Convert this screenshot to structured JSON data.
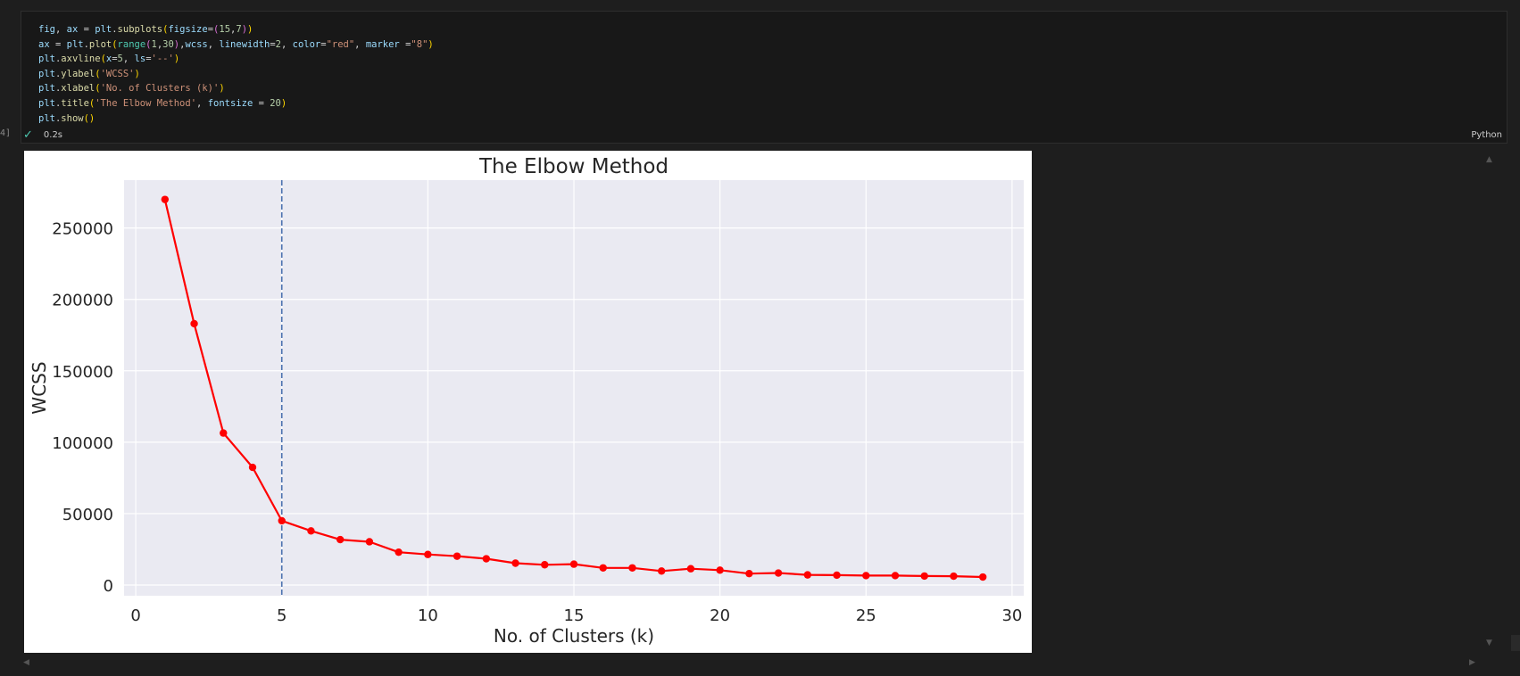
{
  "cell": {
    "execution_count": "4]",
    "code_lines": [
      [
        [
          "fig",
          "var"
        ],
        [
          ", ",
          "plain"
        ],
        [
          "ax",
          "var"
        ],
        [
          " = ",
          "plain"
        ],
        [
          "plt",
          "var"
        ],
        [
          ".",
          "plain"
        ],
        [
          "subplots",
          "fn"
        ],
        [
          "(",
          "paren"
        ],
        [
          "figsize",
          "var"
        ],
        [
          "=",
          "plain"
        ],
        [
          "(",
          "paren2"
        ],
        [
          "15",
          "num"
        ],
        [
          ",",
          "plain"
        ],
        [
          "7",
          "num"
        ],
        [
          ")",
          "paren2"
        ],
        [
          ")",
          "paren"
        ]
      ],
      [
        [
          "ax",
          "var"
        ],
        [
          " = ",
          "plain"
        ],
        [
          "plt",
          "var"
        ],
        [
          ".",
          "plain"
        ],
        [
          "plot",
          "fn"
        ],
        [
          "(",
          "paren"
        ],
        [
          "range",
          "cls"
        ],
        [
          "(",
          "paren2"
        ],
        [
          "1",
          "num"
        ],
        [
          ",",
          "plain"
        ],
        [
          "30",
          "num"
        ],
        [
          ")",
          "paren2"
        ],
        [
          ",",
          "plain"
        ],
        [
          "wcss",
          "var"
        ],
        [
          ", ",
          "plain"
        ],
        [
          "linewidth",
          "var"
        ],
        [
          "=",
          "plain"
        ],
        [
          "2",
          "num"
        ],
        [
          ", ",
          "plain"
        ],
        [
          "color",
          "var"
        ],
        [
          "=",
          "plain"
        ],
        [
          "\"red\"",
          "str"
        ],
        [
          ", ",
          "plain"
        ],
        [
          "marker",
          "var"
        ],
        [
          " =",
          "plain"
        ],
        [
          "\"8\"",
          "str"
        ],
        [
          ")",
          "paren"
        ]
      ],
      [
        [
          "plt",
          "var"
        ],
        [
          ".",
          "plain"
        ],
        [
          "axvline",
          "fn"
        ],
        [
          "(",
          "paren"
        ],
        [
          "x",
          "var"
        ],
        [
          "=",
          "plain"
        ],
        [
          "5",
          "num"
        ],
        [
          ", ",
          "plain"
        ],
        [
          "ls",
          "var"
        ],
        [
          "=",
          "plain"
        ],
        [
          "'--'",
          "str"
        ],
        [
          ")",
          "paren"
        ]
      ],
      [
        [
          "plt",
          "var"
        ],
        [
          ".",
          "plain"
        ],
        [
          "ylabel",
          "fn"
        ],
        [
          "(",
          "paren"
        ],
        [
          "'WCSS'",
          "str"
        ],
        [
          ")",
          "paren"
        ]
      ],
      [
        [
          "plt",
          "var"
        ],
        [
          ".",
          "plain"
        ],
        [
          "xlabel",
          "fn"
        ],
        [
          "(",
          "paren"
        ],
        [
          "'No. of Clusters (k)'",
          "str"
        ],
        [
          ")",
          "paren"
        ]
      ],
      [
        [
          "plt",
          "var"
        ],
        [
          ".",
          "plain"
        ],
        [
          "title",
          "fn"
        ],
        [
          "(",
          "paren"
        ],
        [
          "'The Elbow Method'",
          "str"
        ],
        [
          ", ",
          "plain"
        ],
        [
          "fontsize",
          "var"
        ],
        [
          " = ",
          "plain"
        ],
        [
          "20",
          "num"
        ],
        [
          ")",
          "paren"
        ]
      ],
      [
        [
          "plt",
          "var"
        ],
        [
          ".",
          "plain"
        ],
        [
          "show",
          "fn"
        ],
        [
          "()",
          "paren"
        ]
      ]
    ],
    "status_icon": "check-icon",
    "duration": "0.2s",
    "language": "Python"
  },
  "colors": {
    "line": "#ff0000",
    "vline": "#4c72b0",
    "plot_bg": "#eaeaf2",
    "grid": "#ffffff"
  },
  "chart_data": {
    "type": "line",
    "title": "The Elbow Method",
    "xlabel": "No. of Clusters (k)",
    "ylabel": "WCSS",
    "x": [
      1,
      2,
      3,
      4,
      5,
      6,
      7,
      8,
      9,
      10,
      11,
      12,
      13,
      14,
      15,
      16,
      17,
      18,
      19,
      20,
      21,
      22,
      23,
      24,
      25,
      26,
      27,
      28,
      29
    ],
    "series": [
      {
        "values": [
          269980,
          183000,
          106400,
          82400,
          45000,
          37900,
          31800,
          30300,
          23000,
          21400,
          20200,
          18400,
          15300,
          14200,
          14600,
          12000,
          12000,
          9800,
          11400,
          10400,
          8000,
          8400,
          7100,
          6900,
          6600,
          6600,
          6300,
          6200,
          5600
        ]
      }
    ],
    "vline_x": 5,
    "xlim": [
      -0.4,
      30.4
    ],
    "ylim": [
      -7500,
      283500
    ],
    "xticks": [
      0,
      5,
      10,
      15,
      20,
      25,
      30
    ],
    "yticks": [
      0,
      50000,
      100000,
      150000,
      200000,
      250000
    ],
    "grid": true
  }
}
